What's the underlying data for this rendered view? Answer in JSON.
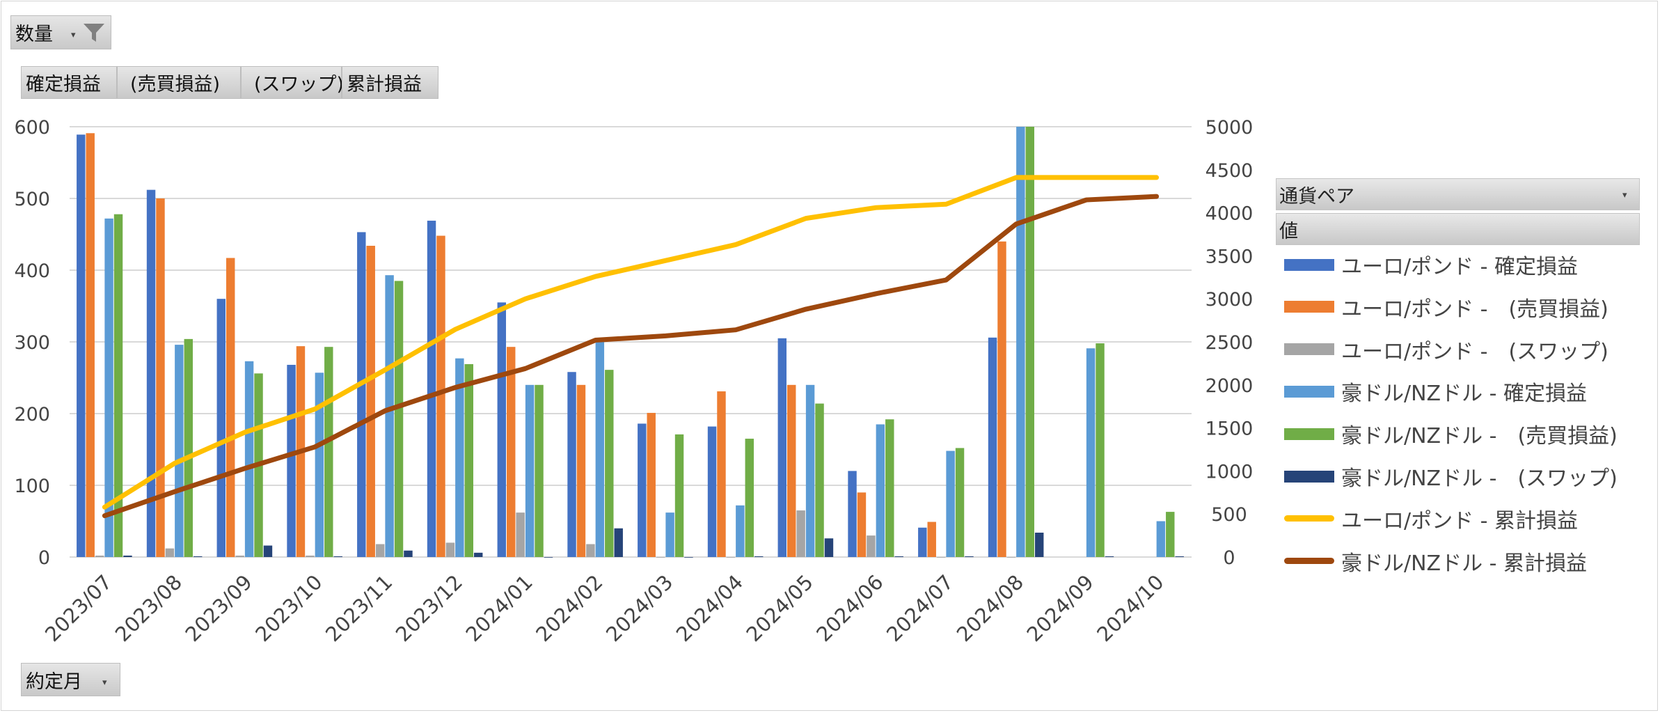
{
  "filter": {
    "label": "数量"
  },
  "value_fields": [
    "確定損益",
    "(売買損益)",
    "(スワップ)",
    "累計損益"
  ],
  "axis_field": {
    "label": "約定月"
  },
  "legend_field": {
    "label": "通貨ペア"
  },
  "legend_values": {
    "label": "値"
  },
  "colors": {
    "eur_gbp_realized": "#4472C4",
    "eur_gbp_trade": "#ED7D31",
    "eur_gbp_swap": "#A5A5A5",
    "aud_nzd_realized": "#5B9BD5",
    "aud_nzd_trade": "#70AD47",
    "aud_nzd_swap": "#264478",
    "eur_gbp_cum": "#FFC000",
    "aud_nzd_cum": "#9E480E"
  },
  "chart_data": {
    "type": "bar",
    "categories": [
      "2023/07",
      "2023/08",
      "2023/09",
      "2023/10",
      "2023/11",
      "2023/12",
      "2024/01",
      "2024/02",
      "2024/03",
      "2024/04",
      "2024/05",
      "2024/06",
      "2024/07",
      "2024/08",
      "2024/09",
      "2024/10"
    ],
    "y_left": {
      "ylim": [
        0,
        600
      ],
      "ticks": [
        0,
        100,
        200,
        300,
        400,
        500,
        600
      ]
    },
    "y_right": {
      "ylim": [
        0,
        5000
      ],
      "ticks": [
        0,
        500,
        1000,
        1500,
        2000,
        2500,
        3000,
        3500,
        4000,
        4500,
        5000
      ]
    },
    "grid": true,
    "legend_position": "right",
    "series": [
      {
        "name": "ユーロ/ポンド - 確定損益",
        "type": "bar",
        "axis": "left",
        "color_key": "eur_gbp_realized",
        "values": [
          589,
          512,
          360,
          268,
          453,
          469,
          355,
          258,
          186,
          182,
          305,
          120,
          41,
          306,
          null,
          null
        ]
      },
      {
        "name": "ユーロ/ポンド -　(売買損益)",
        "type": "bar",
        "axis": "left",
        "color_key": "eur_gbp_trade",
        "values": [
          591,
          500,
          417,
          294,
          434,
          448,
          293,
          240,
          201,
          231,
          240,
          90,
          49,
          440,
          null,
          null
        ]
      },
      {
        "name": "ユーロ/ポンド -　(スワップ)",
        "type": "bar",
        "axis": "left",
        "color_key": "eur_gbp_swap",
        "values": [
          2,
          12,
          2,
          2,
          18,
          20,
          62,
          18,
          0,
          0,
          65,
          30,
          0,
          0,
          null,
          null
        ]
      },
      {
        "name": "豪ドル/NZドル - 確定損益",
        "type": "bar",
        "axis": "left",
        "color_key": "aud_nzd_realized",
        "values": [
          472,
          296,
          273,
          257,
          393,
          277,
          240,
          302,
          62,
          72,
          240,
          185,
          148,
          600,
          291,
          50
        ]
      },
      {
        "name": "豪ドル/NZドル -　(売買損益)",
        "type": "bar",
        "axis": "left",
        "color_key": "aud_nzd_trade",
        "values": [
          478,
          304,
          256,
          293,
          385,
          269,
          240,
          261,
          171,
          165,
          214,
          192,
          152,
          600,
          298,
          63
        ]
      },
      {
        "name": "豪ドル/NZドル -　(スワップ)",
        "type": "bar",
        "axis": "left",
        "color_key": "aud_nzd_swap",
        "values": [
          2,
          1,
          16,
          1,
          9,
          6,
          0,
          40,
          0,
          1,
          26,
          1,
          1,
          34,
          1,
          1
        ]
      },
      {
        "name": "ユーロ/ポンド - 累計損益",
        "type": "line",
        "axis": "right",
        "color_key": "eur_gbp_cum",
        "values": [
          580,
          1090,
          1450,
          1720,
          2175,
          2645,
          3000,
          3260,
          3445,
          3630,
          3935,
          4060,
          4100,
          4410,
          4410,
          4410
        ]
      },
      {
        "name": "豪ドル/NZドル - 累計損益",
        "type": "line",
        "axis": "right",
        "color_key": "aud_nzd_cum",
        "values": [
          480,
          760,
          1030,
          1280,
          1700,
          1970,
          2190,
          2520,
          2570,
          2640,
          2880,
          3060,
          3220,
          3870,
          4150,
          4190
        ]
      }
    ]
  }
}
